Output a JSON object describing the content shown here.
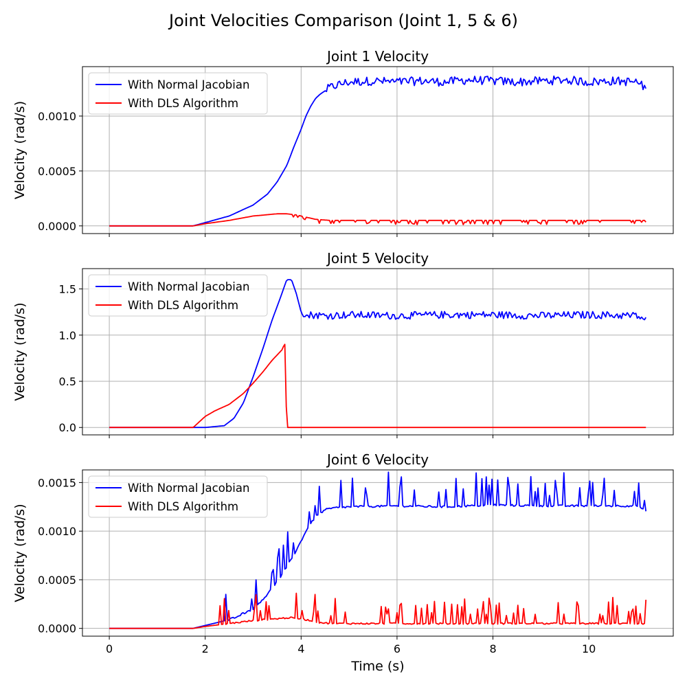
{
  "figure_title": "Joint Velocities Comparison (Joint 1, 5 & 6)",
  "colors": {
    "normal": "#0000ff",
    "dls": "#ff0000"
  },
  "chart_data": [
    {
      "type": "line",
      "title": "Joint 1 Velocity",
      "xlabel": "",
      "ylabel": "Velocity (rad/s)",
      "xlim": [
        -0.56,
        11.76
      ],
      "ylim": [
        -7e-05,
        0.00145
      ],
      "xticks": [
        0,
        2,
        4,
        6,
        8,
        10
      ],
      "xtick_labels": [
        "",
        "",
        "",
        "",
        "",
        ""
      ],
      "yticks": [
        0,
        0.0005,
        0.001
      ],
      "ytick_labels": [
        "0.0000",
        "0.0005",
        "0.0010"
      ],
      "grid": true,
      "legend": "upper left",
      "series": [
        {
          "name": "With Normal Jacobian",
          "color": "#0000ff",
          "x": [
            0,
            1.75,
            2.0,
            2.5,
            3.0,
            3.3,
            3.5,
            3.7,
            3.85,
            4.0,
            4.1,
            4.2,
            4.3,
            4.4,
            4.6,
            4.8,
            5.0,
            5.5,
            6.0,
            6.5,
            7.0,
            7.5,
            8.0,
            8.5,
            9.0,
            9.5,
            10.0,
            10.5,
            11.0,
            11.2
          ],
          "y": [
            0,
            0,
            3e-05,
            9e-05,
            0.00019,
            0.00029,
            0.0004,
            0.00055,
            0.00072,
            0.00088,
            0.001,
            0.00109,
            0.00116,
            0.0012,
            0.00126,
            0.00129,
            0.00131,
            0.00132,
            0.00131,
            0.00132,
            0.00131,
            0.00133,
            0.00132,
            0.00131,
            0.00132,
            0.00133,
            0.00131,
            0.00132,
            0.00131,
            0.00125
          ],
          "noise": 4e-05,
          "noise_start": 4.5
        },
        {
          "name": "With DLS Algorithm",
          "color": "#ff0000",
          "x": [
            0,
            1.75,
            2.0,
            2.5,
            3.0,
            3.5,
            3.7,
            3.9,
            4.1,
            4.3,
            4.6,
            5.0,
            6.0,
            7.0,
            8.0,
            9.0,
            10.0,
            11.2
          ],
          "y": [
            0,
            0,
            2e-05,
            5e-05,
            9e-05,
            0.00011,
            0.00011,
            0.0001,
            8e-05,
            6e-05,
            5e-05,
            5e-05,
            5e-05,
            5e-05,
            5e-05,
            5e-05,
            5e-05,
            5e-05
          ],
          "noise": 3e-05,
          "noise_start": 3.8
        }
      ]
    },
    {
      "type": "line",
      "title": "Joint 5 Velocity",
      "xlabel": "",
      "ylabel": "Velocity (rad/s)",
      "xlim": [
        -0.56,
        11.76
      ],
      "ylim": [
        -0.08,
        1.72
      ],
      "xticks": [
        0,
        2,
        4,
        6,
        8,
        10
      ],
      "xtick_labels": [
        "",
        "",
        "",
        "",
        "",
        ""
      ],
      "yticks": [
        0,
        0.5,
        1.0,
        1.5
      ],
      "ytick_labels": [
        "0.0",
        "0.5",
        "1.0",
        "1.5"
      ],
      "grid": true,
      "legend": "upper left",
      "series": [
        {
          "name": "With Normal Jacobian",
          "color": "#0000ff",
          "x": [
            0,
            2.0,
            2.4,
            2.6,
            2.8,
            3.0,
            3.2,
            3.4,
            3.55,
            3.7,
            3.8,
            3.9,
            4.0,
            4.05,
            4.1,
            4.2,
            4.5,
            5.0,
            6.0,
            7.0,
            8.0,
            9.0,
            10.0,
            11.0,
            11.2
          ],
          "y": [
            0,
            0,
            0.02,
            0.1,
            0.27,
            0.55,
            0.85,
            1.17,
            1.38,
            1.6,
            1.6,
            1.45,
            1.25,
            1.2,
            1.2,
            1.22,
            1.21,
            1.22,
            1.21,
            1.22,
            1.22,
            1.21,
            1.22,
            1.21,
            1.16
          ],
          "noise": 0.04,
          "noise_start": 4.1
        },
        {
          "name": "With DLS Algorithm",
          "color": "#ff0000",
          "x": [
            0,
            1.75,
            2.0,
            2.2,
            2.5,
            2.8,
            3.0,
            3.2,
            3.4,
            3.6,
            3.65,
            3.66,
            3.7,
            11.2
          ],
          "y": [
            0,
            0,
            0.12,
            0.18,
            0.25,
            0.37,
            0.48,
            0.6,
            0.73,
            0.84,
            0.9,
            0.9,
            0,
            0
          ],
          "noise": 0.0,
          "noise_start": 99
        }
      ]
    },
    {
      "type": "line",
      "title": "Joint 6 Velocity",
      "xlabel": "Time (s)",
      "ylabel": "Velocity (rad/s)",
      "xlim": [
        -0.56,
        11.76
      ],
      "ylim": [
        -8e-05,
        0.00163
      ],
      "xticks": [
        0,
        2,
        4,
        6,
        8,
        10
      ],
      "xtick_labels": [
        "0",
        "2",
        "4",
        "6",
        "8",
        "10"
      ],
      "yticks": [
        0,
        0.0005,
        0.001,
        0.0015
      ],
      "ytick_labels": [
        "0.0000",
        "0.0005",
        "0.0010",
        "0.0015"
      ],
      "grid": true,
      "legend": "upper left",
      "series": [
        {
          "name": "With Normal Jacobian",
          "color": "#0000ff",
          "x": [
            0,
            1.75,
            2.0,
            2.5,
            3.0,
            3.3,
            3.6,
            3.9,
            4.1,
            4.3,
            4.5,
            4.7,
            5.0,
            6.0,
            7.0,
            8.0,
            9.0,
            10.0,
            11.0,
            11.2
          ],
          "y": [
            0,
            0,
            3e-05,
            9e-05,
            0.0002,
            0.00035,
            0.00055,
            0.0008,
            0.001,
            0.00115,
            0.00122,
            0.00124,
            0.00125,
            0.00126,
            0.00125,
            0.00127,
            0.00126,
            0.00126,
            0.00126,
            0.0012
          ],
          "noise": 0.00025,
          "noise_start": 2.4
        },
        {
          "name": "With DLS Algorithm",
          "color": "#ff0000",
          "x": [
            0,
            1.75,
            2.0,
            2.5,
            3.0,
            3.5,
            3.75,
            4.0,
            4.2,
            4.4,
            4.6,
            5.0,
            6.0,
            7.0,
            8.0,
            9.0,
            10.0,
            11.2
          ],
          "y": [
            0,
            0,
            2e-05,
            5e-05,
            8e-05,
            0.0001,
            0.00011,
            0.0001,
            8e-05,
            6e-05,
            5e-05,
            5e-05,
            5e-05,
            5e-05,
            5e-05,
            5e-05,
            5e-05,
            5e-05
          ],
          "noise": 0.0002,
          "noise_start": 2.3
        }
      ]
    }
  ]
}
